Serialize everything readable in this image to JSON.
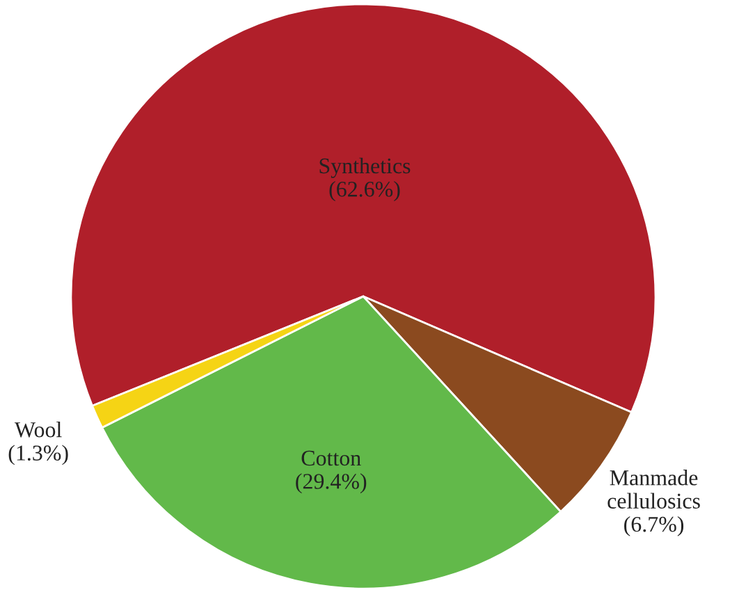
{
  "chart_data": {
    "type": "pie",
    "categories": [
      "Synthetics",
      "Manmade cellulosics",
      "Cotton",
      "Wool"
    ],
    "values": [
      62.6,
      6.7,
      29.4,
      1.3
    ],
    "value_labels": [
      "(62.6%)",
      "(6.7%)",
      "(29.4%)",
      "(1.3%)"
    ],
    "colors": [
      "#b01f2a",
      "#8b4a1f",
      "#62b94a",
      "#f5d415"
    ],
    "legend": false
  }
}
